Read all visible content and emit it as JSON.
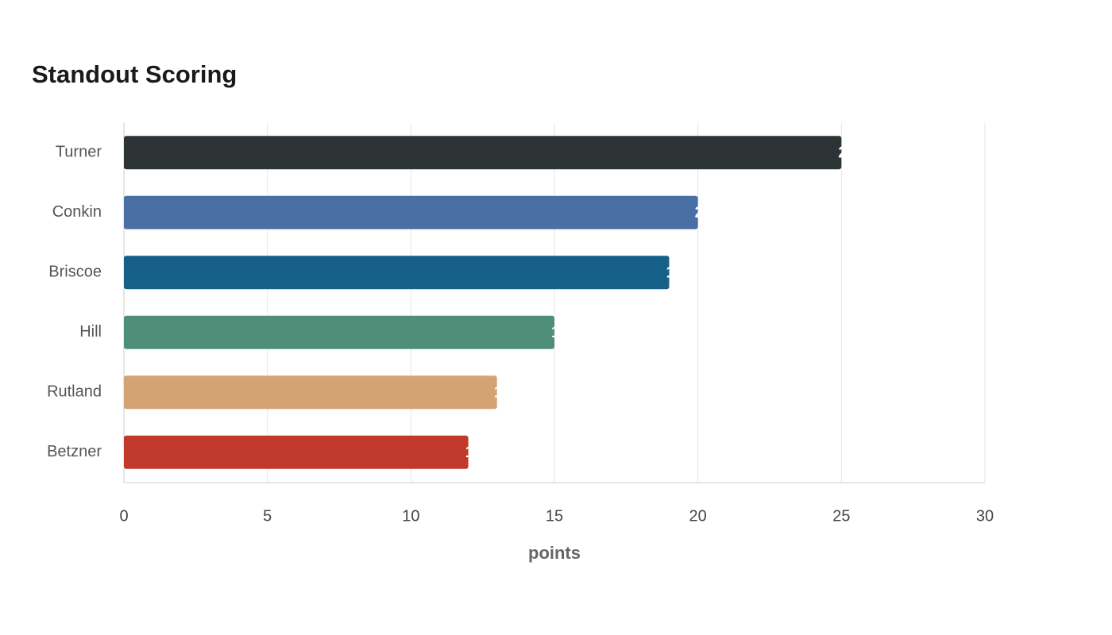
{
  "chart_data": {
    "type": "bar",
    "orientation": "horizontal",
    "title": "Standout Scoring",
    "categories": [
      "Turner",
      "Conkin",
      "Briscoe",
      "Hill",
      "Rutland",
      "Betzner"
    ],
    "values": [
      25,
      20,
      19,
      15,
      13,
      12
    ],
    "colors": [
      "#2d3436",
      "#4a6fa5",
      "#166088",
      "#4f8f7a",
      "#d4a373",
      "#c0392b"
    ],
    "xlabel": "points",
    "xlim": [
      0,
      30
    ],
    "xticks": [
      0,
      5,
      10,
      15,
      20,
      25,
      30
    ],
    "grid": true
  }
}
